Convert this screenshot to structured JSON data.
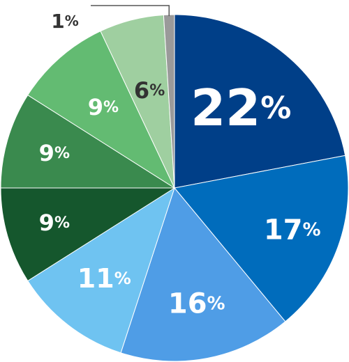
{
  "chart_data": {
    "type": "pie",
    "start_angle_deg": 0,
    "direction": "clockwise",
    "slices": [
      {
        "value": 22,
        "label": "22%",
        "color": "#003f88",
        "label_color": "#ffffff"
      },
      {
        "value": 17,
        "label": "17%",
        "color": "#006cbc",
        "label_color": "#ffffff"
      },
      {
        "value": 16,
        "label": "16%",
        "color": "#4f9de6",
        "label_color": "#ffffff"
      },
      {
        "value": 11,
        "label": "11%",
        "color": "#6fc3f1",
        "label_color": "#ffffff"
      },
      {
        "value": 9,
        "label": "9%",
        "color": "#15572d",
        "label_color": "#ffffff"
      },
      {
        "value": 9,
        "label": "9%",
        "color": "#3a8a4e",
        "label_color": "#ffffff"
      },
      {
        "value": 9,
        "label": "9%",
        "color": "#63bb72",
        "label_color": "#ffffff"
      },
      {
        "value": 6,
        "label": "6%",
        "color": "#9fcfa0",
        "label_color": "#333333"
      },
      {
        "value": 1,
        "label": "1%",
        "color": "#9a9a9a",
        "label_color": "#333333"
      }
    ]
  }
}
